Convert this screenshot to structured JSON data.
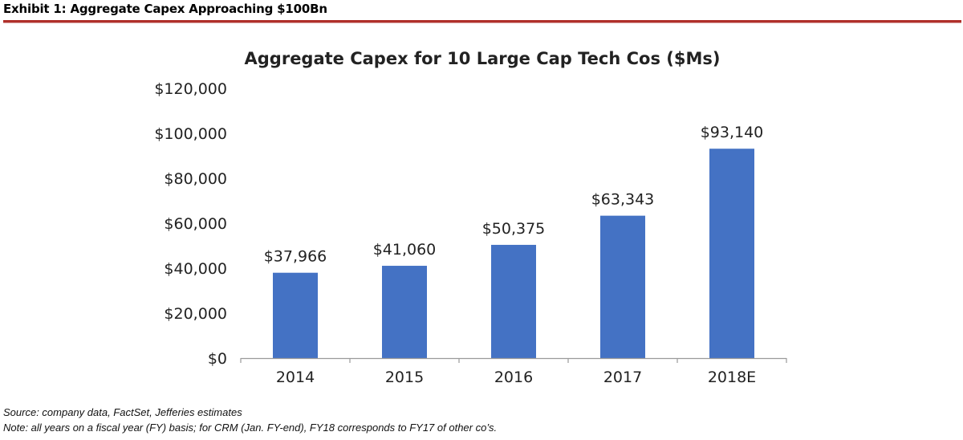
{
  "exhibit": {
    "title": "Exhibit 1: Aggregate Capex Approaching $100Bn"
  },
  "chart_data": {
    "type": "bar",
    "title": "Aggregate Capex for 10 Large Cap Tech Cos ($Ms)",
    "categories": [
      "2014",
      "2015",
      "2016",
      "2017",
      "2018E"
    ],
    "values": [
      37966,
      41060,
      50375,
      63343,
      93140
    ],
    "data_labels": [
      "$37,966",
      "$41,060",
      "$50,375",
      "$63,343",
      "$93,140"
    ],
    "xlabel": "",
    "ylabel": "",
    "ylim": [
      0,
      120000
    ],
    "yticks": [
      0,
      20000,
      40000,
      60000,
      80000,
      100000,
      120000
    ],
    "ytick_labels": [
      "$0",
      "$20,000",
      "$40,000",
      "$60,000",
      "$80,000",
      "$100,000",
      "$120,000"
    ],
    "grid": false,
    "legend": "none",
    "bar_color": "#4472c4"
  },
  "footer": {
    "source": "Source: company data, FactSet, Jefferies estimates",
    "note": "Note: all years on a fiscal year (FY) basis; for CRM (Jan. FY-end), FY18 corresponds to FY17 of other co’s."
  }
}
